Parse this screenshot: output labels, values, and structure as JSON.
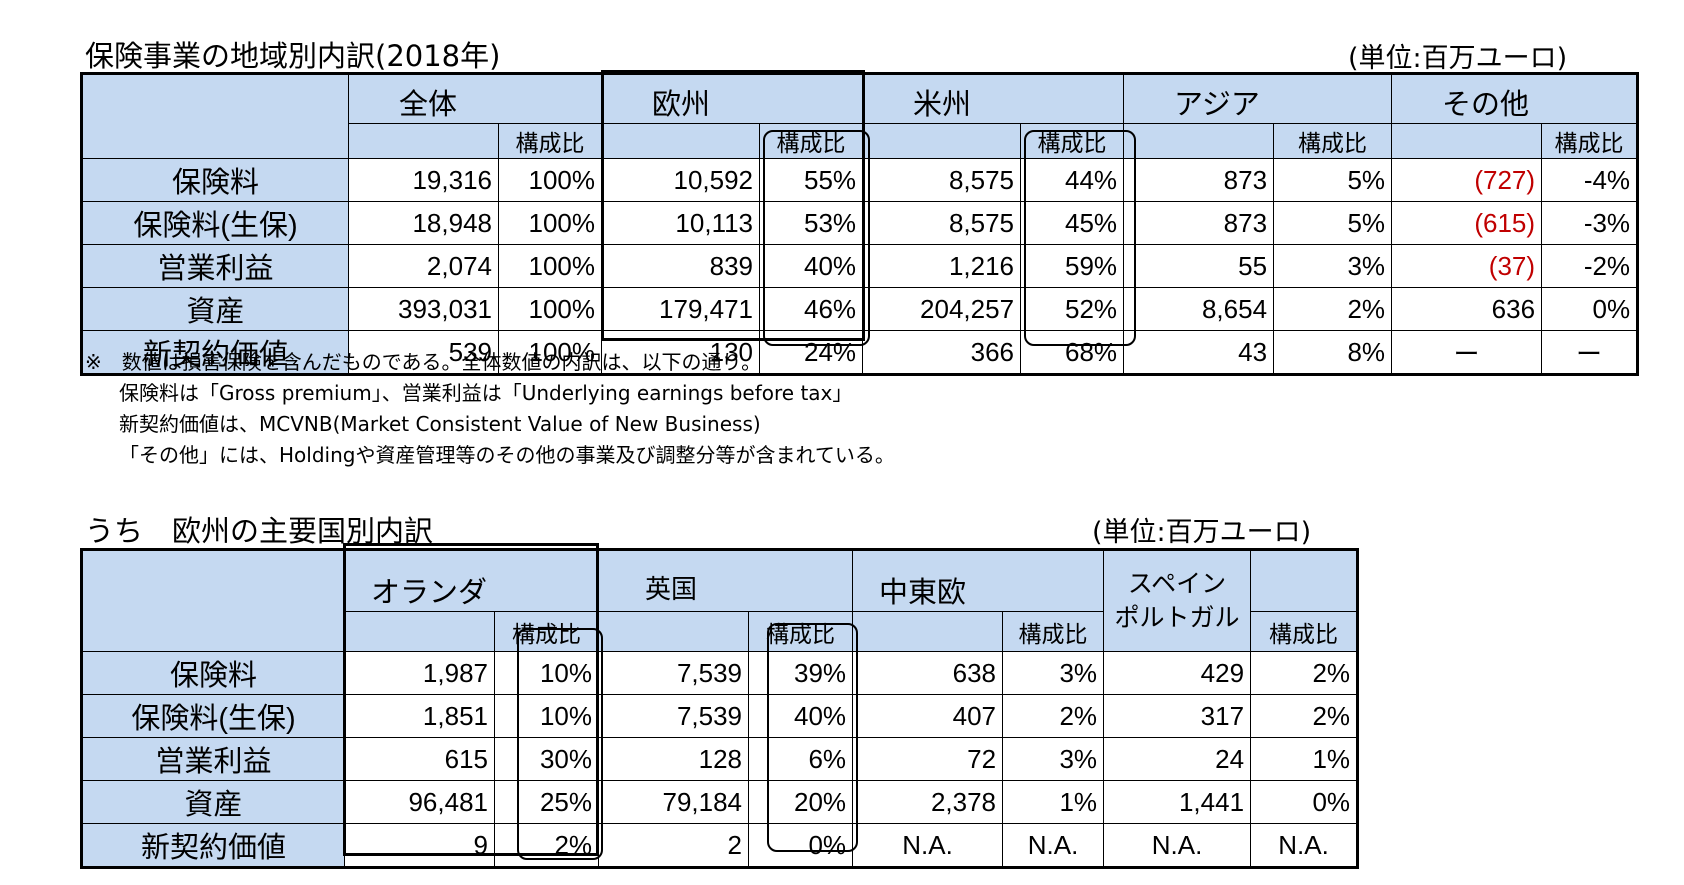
{
  "top": {
    "title": "保険事業の地域別内訳(2018年)",
    "unit": "(単位:百万ユーロ)",
    "columns": [
      "全体",
      "欧州",
      "米州",
      "アジア",
      "その他"
    ],
    "share_label": "構成比",
    "rows": [
      {
        "label": "保険料",
        "cells": [
          "19,316",
          "100%",
          "10,592",
          "55%",
          "8,575",
          "44%",
          "873",
          "5%",
          "(727)",
          "-4%"
        ]
      },
      {
        "label": "保険料(生保)",
        "cells": [
          "18,948",
          "100%",
          "10,113",
          "53%",
          "8,575",
          "45%",
          "873",
          "5%",
          "(615)",
          "-3%"
        ]
      },
      {
        "label": "営業利益",
        "cells": [
          "2,074",
          "100%",
          "839",
          "40%",
          "1,216",
          "59%",
          "55",
          "3%",
          "(37)",
          "-2%"
        ]
      },
      {
        "label": "資産",
        "cells": [
          "393,031",
          "100%",
          "179,471",
          "46%",
          "204,257",
          "52%",
          "8,654",
          "2%",
          "636",
          "0%"
        ]
      },
      {
        "label": "新契約価値",
        "cells": [
          "539",
          "100%",
          "130",
          "24%",
          "366",
          "68%",
          "43",
          "8%",
          "ー",
          "ー"
        ]
      }
    ]
  },
  "notes": [
    "※　数値は損害保険を含んだものである。全体数値の内訳は、以下の通り。",
    "保険料は「Gross premium」、営業利益は「Underlying earnings before tax」",
    "新契約価値は、MCVNB(Market Consistent Value of New Business)",
    "「その他」には、Holdingや資産管理等のその他の事業及び調整分等が含まれている。"
  ],
  "bottom": {
    "title": "うち　欧州の主要国別内訳",
    "unit": "(単位:百万ユーロ)",
    "columns": [
      "オランダ",
      "英国",
      "中東欧",
      "スペイン\nポルトガル"
    ],
    "share_label": "構成比",
    "rows": [
      {
        "label": "保険料",
        "cells": [
          "1,987",
          "10%",
          "7,539",
          "39%",
          "638",
          "3%",
          "429",
          "2%"
        ]
      },
      {
        "label": "保険料(生保)",
        "cells": [
          "1,851",
          "10%",
          "7,539",
          "40%",
          "407",
          "2%",
          "317",
          "2%"
        ]
      },
      {
        "label": "営業利益",
        "cells": [
          "615",
          "30%",
          "128",
          "6%",
          "72",
          "3%",
          "24",
          "1%"
        ]
      },
      {
        "label": "資産",
        "cells": [
          "96,481",
          "25%",
          "79,184",
          "20%",
          "2,378",
          "1%",
          "1,441",
          "0%"
        ]
      },
      {
        "label": "新契約価値",
        "cells": [
          "9",
          "2%",
          "2",
          "0%",
          "N.A.",
          "N.A.",
          "N.A.",
          "N.A."
        ]
      }
    ]
  },
  "colors": {
    "header_fill": "#c5d9f1",
    "negative": "#c00000"
  }
}
